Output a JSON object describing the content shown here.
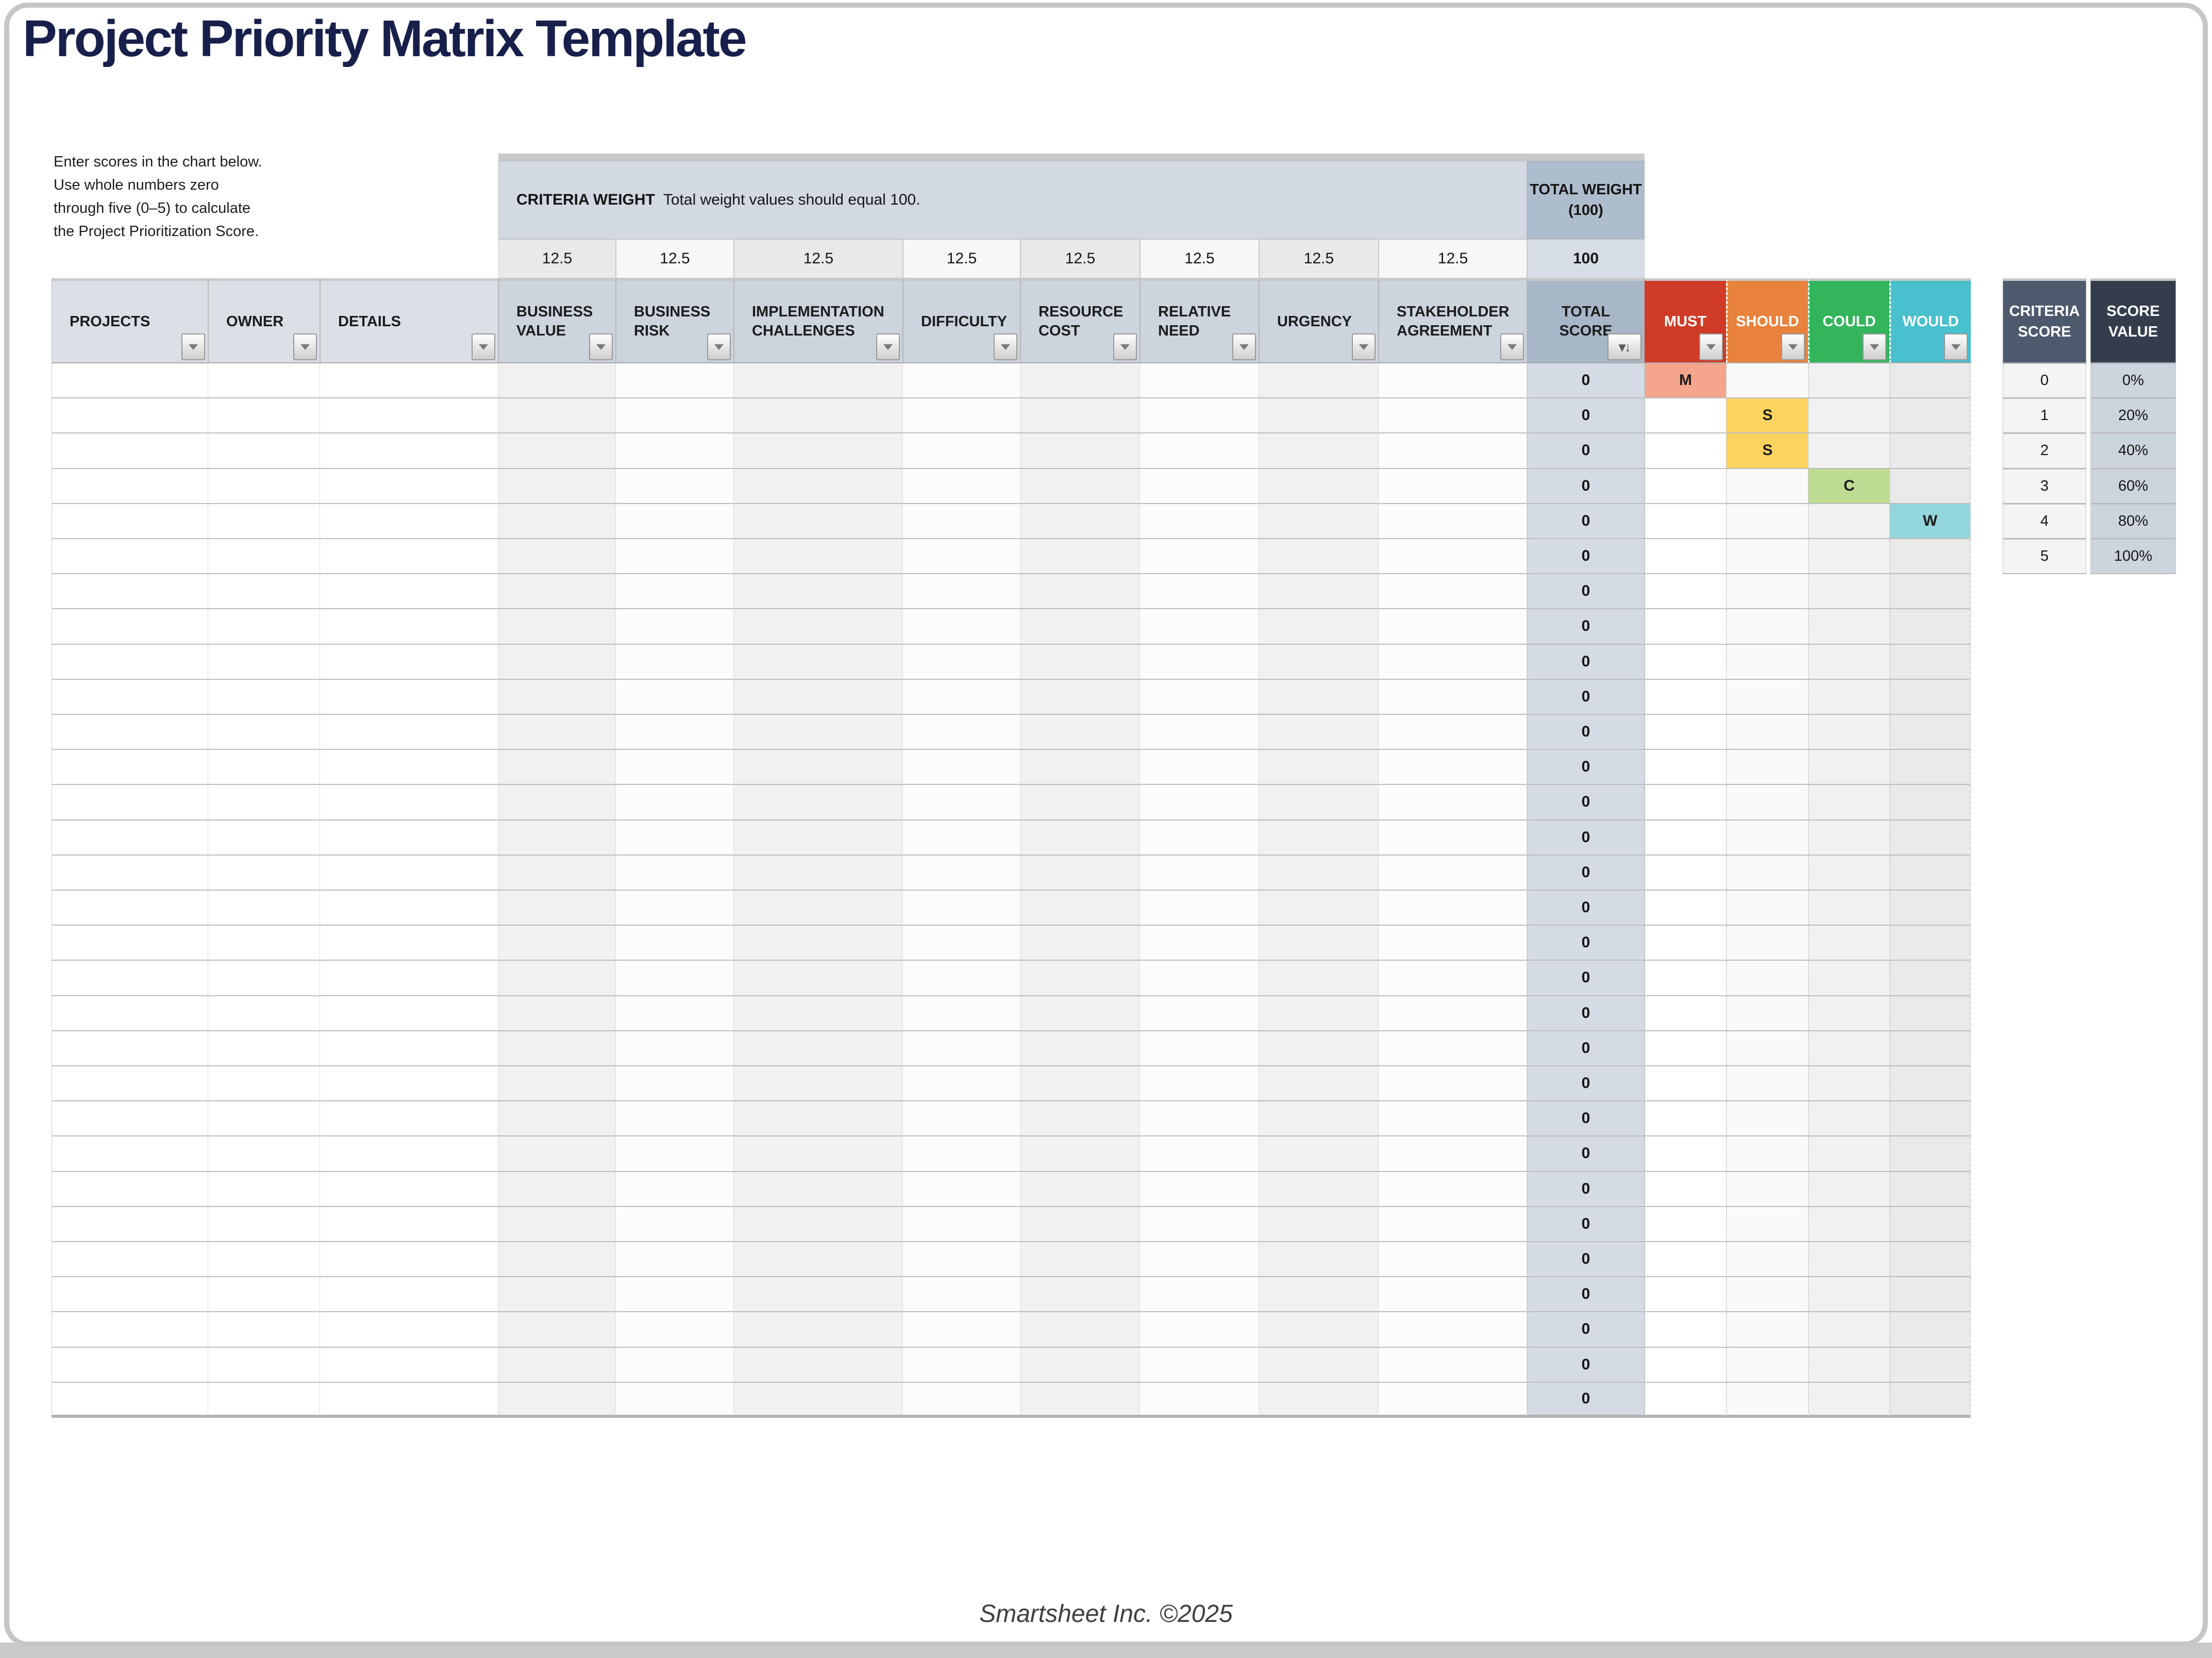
{
  "page": {
    "title": "Project Priority Matrix Template",
    "instructions": "Enter scores in the chart below.\nUse whole numbers zero\nthrough five (0–5) to calculate\nthe Project Prioritization Score.",
    "footer": "Smartsheet Inc. ©2025"
  },
  "criteria_weight": {
    "label": "CRITERIA WEIGHT",
    "note": "Total weight values should equal 100.",
    "total_weight_header_lines": [
      "TOTAL WEIGHT",
      "(100)"
    ],
    "weights": [
      "12.5",
      "12.5",
      "12.5",
      "12.5",
      "12.5",
      "12.5",
      "12.5",
      "12.5"
    ],
    "total_weight_value": "100"
  },
  "table": {
    "columns": [
      {
        "id": "projects",
        "label": "PROJECTS"
      },
      {
        "id": "owner",
        "label": "OWNER"
      },
      {
        "id": "details",
        "label": "DETAILS"
      },
      {
        "id": "business_value",
        "label": "BUSINESS VALUE"
      },
      {
        "id": "business_risk",
        "label": "BUSINESS RISK"
      },
      {
        "id": "implementation_challenges",
        "label": "IMPLEMENTATION CHALLENGES"
      },
      {
        "id": "difficulty",
        "label": "DIFFICULTY"
      },
      {
        "id": "resource_cost",
        "label": "RESOURCE COST"
      },
      {
        "id": "relative_need",
        "label": "RELATIVE NEED"
      },
      {
        "id": "urgency",
        "label": "URGENCY"
      },
      {
        "id": "stakeholder_agreement",
        "label": "STAKEHOLDER AGREEMENT"
      },
      {
        "id": "total_score",
        "label": "TOTAL SCORE"
      },
      {
        "id": "must",
        "label": "MUST"
      },
      {
        "id": "should",
        "label": "SHOULD"
      },
      {
        "id": "could",
        "label": "COULD"
      },
      {
        "id": "would",
        "label": "WOULD"
      }
    ],
    "rows": [
      {
        "score": "0",
        "tag": "M"
      },
      {
        "score": "0",
        "tag": "S"
      },
      {
        "score": "0",
        "tag": "S"
      },
      {
        "score": "0",
        "tag": "C"
      },
      {
        "score": "0",
        "tag": "W"
      },
      {
        "score": "0",
        "tag": ""
      },
      {
        "score": "0",
        "tag": ""
      },
      {
        "score": "0",
        "tag": ""
      },
      {
        "score": "0",
        "tag": ""
      },
      {
        "score": "0",
        "tag": ""
      },
      {
        "score": "0",
        "tag": ""
      },
      {
        "score": "0",
        "tag": ""
      },
      {
        "score": "0",
        "tag": ""
      },
      {
        "score": "0",
        "tag": ""
      },
      {
        "score": "0",
        "tag": ""
      },
      {
        "score": "0",
        "tag": ""
      },
      {
        "score": "0",
        "tag": ""
      },
      {
        "score": "0",
        "tag": ""
      },
      {
        "score": "0",
        "tag": ""
      },
      {
        "score": "0",
        "tag": ""
      },
      {
        "score": "0",
        "tag": ""
      },
      {
        "score": "0",
        "tag": ""
      },
      {
        "score": "0",
        "tag": ""
      },
      {
        "score": "0",
        "tag": ""
      },
      {
        "score": "0",
        "tag": ""
      },
      {
        "score": "0",
        "tag": ""
      },
      {
        "score": "0",
        "tag": ""
      },
      {
        "score": "0",
        "tag": ""
      },
      {
        "score": "0",
        "tag": ""
      },
      {
        "score": "0",
        "tag": ""
      }
    ]
  },
  "score_legend": {
    "score_header": "CRITERIA SCORE",
    "value_header": "SCORE VALUE",
    "rows": [
      {
        "score": "0",
        "value": "0%"
      },
      {
        "score": "1",
        "value": "20%"
      },
      {
        "score": "2",
        "value": "40%"
      },
      {
        "score": "3",
        "value": "60%"
      },
      {
        "score": "4",
        "value": "80%"
      },
      {
        "score": "5",
        "value": "100%"
      }
    ]
  },
  "colors": {
    "title_navy": "#171f4b",
    "must_red": "#cf3b27",
    "should_orange": "#e8823c",
    "could_green": "#33b55c",
    "would_teal": "#49c0cd",
    "tag_must": "#f4a58c",
    "tag_should": "#fbd35e",
    "tag_could": "#bedb92",
    "tag_would": "#93d6db",
    "legend_score_header_bg": "#4d5a6e",
    "legend_value_header_bg": "#333d4c"
  }
}
